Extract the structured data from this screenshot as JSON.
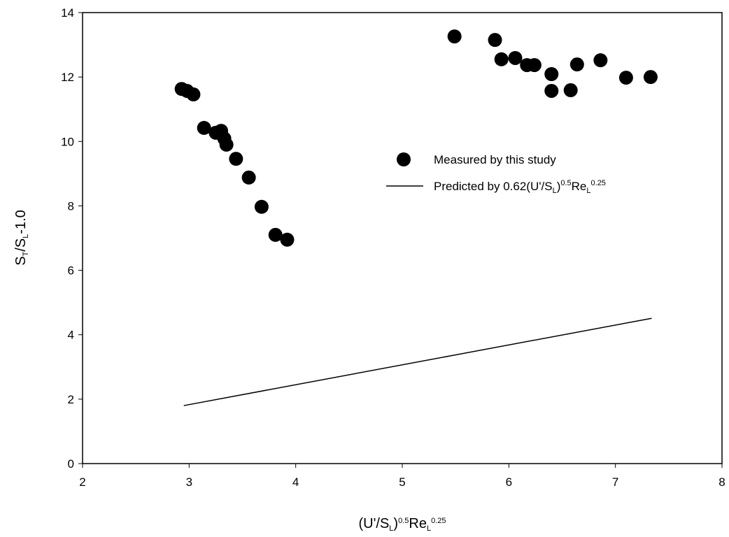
{
  "chart_data": {
    "type": "scatter",
    "x_label": [
      {
        "text": "(U'/S"
      },
      {
        "text": "L",
        "shift": "sub"
      },
      {
        "text": ")"
      },
      {
        "text": "0.5",
        "shift": "sup"
      },
      {
        "text": "Re"
      },
      {
        "text": "L",
        "shift": "sub"
      },
      {
        "text": "0.25",
        "shift": "sup"
      }
    ],
    "y_label": [
      {
        "text": "S"
      },
      {
        "text": "T",
        "shift": "sub"
      },
      {
        "text": "/S"
      },
      {
        "text": "L",
        "shift": "sub"
      },
      {
        "text": "-1.0"
      }
    ],
    "xlim": [
      2,
      8
    ],
    "xticks": [
      2,
      3,
      4,
      5,
      6,
      7,
      8
    ],
    "ylim": [
      0,
      14
    ],
    "yticks": [
      0,
      2,
      4,
      6,
      8,
      10,
      12,
      14
    ],
    "series": [
      {
        "type": "scatter",
        "name": [
          {
            "text": "Measured by this study"
          }
        ],
        "color": "#000000",
        "x": [
          2.93,
          2.98,
          3.04,
          3.14,
          3.25,
          3.3,
          3.33,
          3.35,
          3.44,
          3.56,
          3.68,
          3.81,
          3.92,
          5.49,
          5.87,
          5.93,
          6.06,
          6.17,
          6.24,
          6.4,
          6.4,
          6.58,
          6.64,
          6.86,
          7.1,
          7.33
        ],
        "values": [
          11.63,
          11.57,
          11.46,
          10.42,
          10.27,
          10.33,
          10.09,
          9.9,
          9.46,
          8.88,
          7.97,
          7.1,
          6.95,
          13.26,
          13.15,
          12.55,
          12.59,
          12.37,
          12.37,
          12.09,
          11.57,
          11.59,
          12.39,
          12.52,
          11.98,
          12.0
        ]
      },
      {
        "type": "line",
        "name": [
          {
            "text": "Predicted by 0.62(U'/S"
          },
          {
            "text": "L",
            "shift": "sub"
          },
          {
            "text": ")"
          },
          {
            "text": "0.5",
            "shift": "sup"
          },
          {
            "text": "Re"
          },
          {
            "text": "L",
            "shift": "sub"
          },
          {
            "text": "0.25",
            "shift": "sup"
          }
        ],
        "color": "#000000",
        "x": [
          2.95,
          7.34
        ],
        "values": [
          1.8,
          4.51
        ]
      }
    ]
  }
}
